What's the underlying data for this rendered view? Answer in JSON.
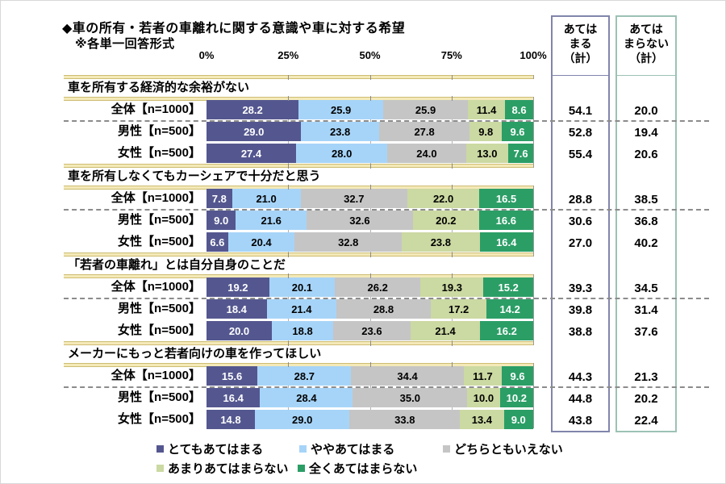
{
  "title": "◆車の所有・若者の車離れに関する意識や車に対する希望",
  "subtitle": "※各単一回答形式",
  "totals_headers": {
    "applies": "あては\nまる\n（計）",
    "not_applies": "あては\nまらない\n（計）"
  },
  "colors": {
    "segment_colors": [
      "#54578f",
      "#a6d4f8",
      "#c5c5c5",
      "#cbd9a2",
      "#2b9e66"
    ],
    "segment_label_colors": [
      "#ffffff",
      "#000000",
      "#000000",
      "#000000",
      "#ffffff"
    ],
    "band_fill": "#f4e9b8",
    "band_edge": "#cdbd72",
    "applies_box_border": "#8185ab",
    "not_applies_box_border": "#9cc2b4",
    "dash_color": "#8c8c8c",
    "grid_color": "#b3b3b3"
  },
  "chart_data": {
    "type": "bar",
    "stacked": true,
    "orientation": "horizontal",
    "xlim": [
      0,
      100
    ],
    "x_ticks": [
      "0%",
      "25%",
      "50%",
      "75%",
      "100%"
    ],
    "grid": true,
    "legend_position": "bottom",
    "legend": [
      "とてもあてはまる",
      "ややあてはまる",
      "どちらともいえない",
      "あまりあてはまらない",
      "全くあてはまらない"
    ],
    "totals_columns": [
      "あてはまる（計）",
      "あてはまらない（計）"
    ],
    "sections": [
      {
        "title": "車を所有する経済的な余裕がない",
        "rows": [
          {
            "label": "全体【n=1000】",
            "values": [
              28.2,
              25.9,
              25.9,
              11.4,
              8.6
            ],
            "totals": [
              54.1,
              20.0
            ]
          },
          {
            "label": "男性【n=500】",
            "values": [
              29.0,
              23.8,
              27.8,
              9.8,
              9.6
            ],
            "totals": [
              52.8,
              19.4
            ]
          },
          {
            "label": "女性【n=500】",
            "values": [
              27.4,
              28.0,
              24.0,
              13.0,
              7.6
            ],
            "totals": [
              55.4,
              20.6
            ]
          }
        ]
      },
      {
        "title": "車を所有しなくてもカーシェアで十分だと思う",
        "rows": [
          {
            "label": "全体【n=1000】",
            "values": [
              7.8,
              21.0,
              32.7,
              22.0,
              16.5
            ],
            "totals": [
              28.8,
              38.5
            ]
          },
          {
            "label": "男性【n=500】",
            "values": [
              9.0,
              21.6,
              32.6,
              20.2,
              16.6
            ],
            "totals": [
              30.6,
              36.8
            ]
          },
          {
            "label": "女性【n=500】",
            "values": [
              6.6,
              20.4,
              32.8,
              23.8,
              16.4
            ],
            "totals": [
              27.0,
              40.2
            ]
          }
        ]
      },
      {
        "title": "「若者の車離れ」とは自分自身のことだ",
        "rows": [
          {
            "label": "全体【n=1000】",
            "values": [
              19.2,
              20.1,
              26.2,
              19.3,
              15.2
            ],
            "totals": [
              39.3,
              34.5
            ]
          },
          {
            "label": "男性【n=500】",
            "values": [
              18.4,
              21.4,
              28.8,
              17.2,
              14.2
            ],
            "totals": [
              39.8,
              31.4
            ]
          },
          {
            "label": "女性【n=500】",
            "values": [
              20.0,
              18.8,
              23.6,
              21.4,
              16.2
            ],
            "totals": [
              38.8,
              37.6
            ]
          }
        ]
      },
      {
        "title": "メーカーにもっと若者向けの車を作ってほしい",
        "rows": [
          {
            "label": "全体【n=1000】",
            "values": [
              15.6,
              28.7,
              34.4,
              11.7,
              9.6
            ],
            "totals": [
              44.3,
              21.3
            ]
          },
          {
            "label": "男性【n=500】",
            "values": [
              16.4,
              28.4,
              35.0,
              10.0,
              10.2
            ],
            "totals": [
              44.8,
              20.2
            ]
          },
          {
            "label": "女性【n=500】",
            "values": [
              14.8,
              29.0,
              33.8,
              13.4,
              9.0
            ],
            "totals": [
              43.8,
              22.4
            ]
          }
        ]
      }
    ]
  }
}
